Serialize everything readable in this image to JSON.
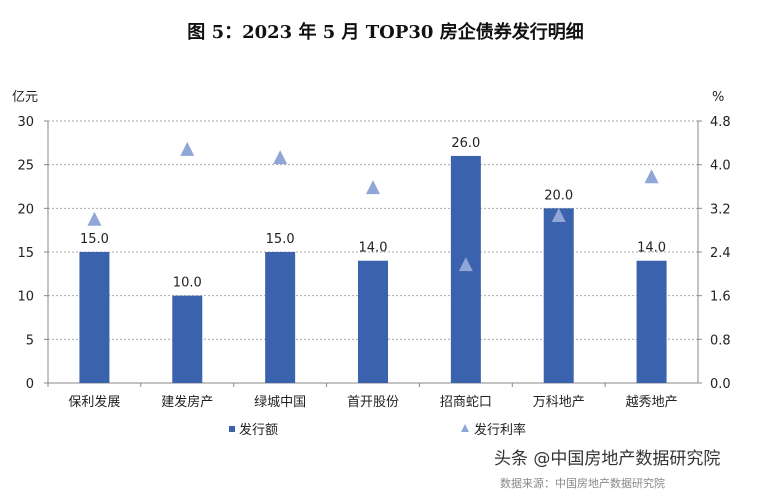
{
  "chart_data": {
    "type": "bar+scatter",
    "title": "图 5：2023 年 5 月 TOP30 房企债券发行明细",
    "ylabel_left": "亿元",
    "ylabel_right": "%",
    "ylim_left": [
      0,
      30
    ],
    "ylim_right": [
      0,
      4.8
    ],
    "yticks_left": [
      "0",
      "5",
      "10",
      "15",
      "20",
      "25",
      "30"
    ],
    "yticks_right": [
      "0.0",
      "0.8",
      "1.6",
      "2.4",
      "3.2",
      "4.0",
      "4.8"
    ],
    "grid": true,
    "legend_position": "bottom",
    "categories": [
      "保利发展",
      "建发房产",
      "绿城中国",
      "首开股份",
      "招商蛇口",
      "万科地产",
      "越秀地产"
    ],
    "series": [
      {
        "name": "发行额",
        "type": "bar",
        "axis": "left",
        "color": "#3a62ad",
        "values": [
          15.0,
          10.0,
          15.0,
          14.0,
          26.0,
          20.0,
          14.0
        ],
        "labels": [
          "15.0",
          "10.0",
          "15.0",
          "14.0",
          "26.0",
          "20.0",
          "14.0"
        ]
      },
      {
        "name": "发行利率",
        "type": "scatter",
        "marker": "triangle",
        "axis": "right",
        "color": "#8fa6d6",
        "values": [
          2.99,
          4.27,
          4.12,
          3.57,
          2.16,
          3.06,
          3.77
        ]
      }
    ]
  },
  "watermark": "头条 @中国房地产数据研究院",
  "source": "数据来源：中国房地产数据研究院"
}
